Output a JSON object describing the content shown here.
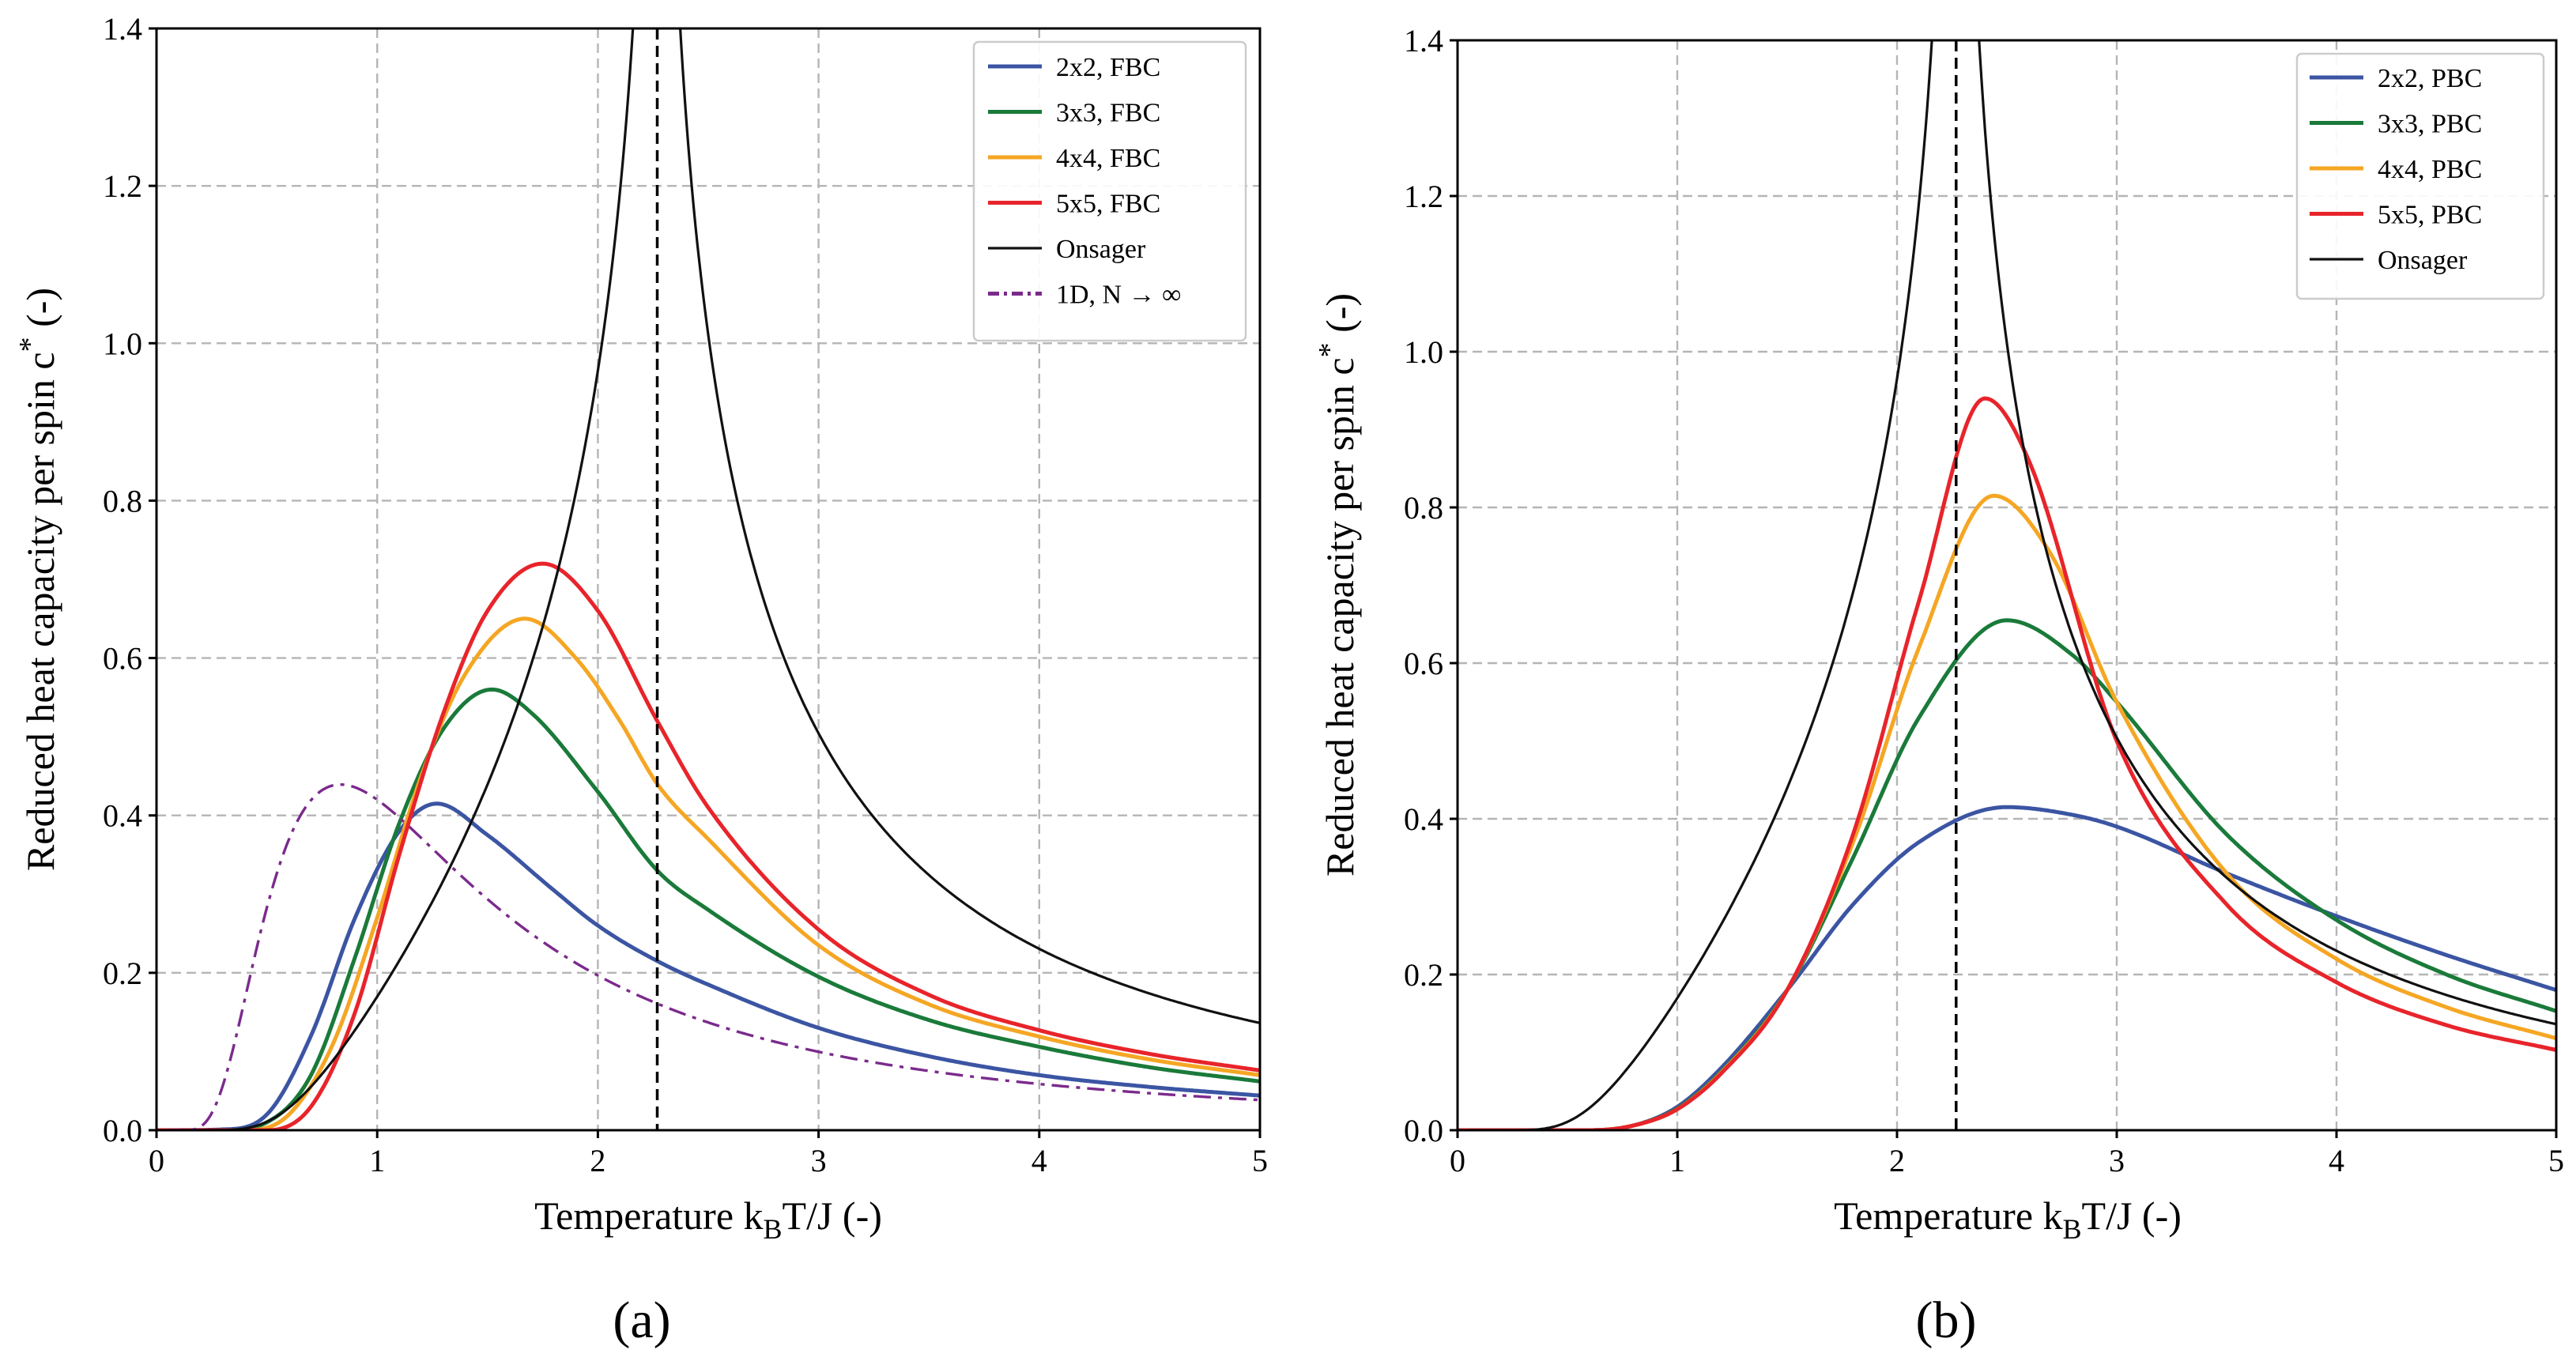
{
  "chart_data": [
    {
      "type": "line",
      "panel": "a",
      "caption": "(a)",
      "xlabel": "Temperature k",
      "xlabel_sub": "B",
      "xlabel_tail": "T/J (-)",
      "ylabel": "Reduced heat capacity per spin c",
      "ylabel_sup": "*",
      "ylabel_tail": "  (-)",
      "xlim": [
        0,
        5
      ],
      "ylim": [
        0,
        1.4
      ],
      "xticks": [
        "0",
        "1",
        "2",
        "3",
        "4",
        "5"
      ],
      "yticks": [
        "0.0",
        "0.2",
        "0.4",
        "0.6",
        "0.8",
        "1.0",
        "1.2",
        "1.4"
      ],
      "grid": true,
      "critical_temperature": 2.269,
      "legend_position": "top-right",
      "series": [
        {
          "name": "2x2, FBC",
          "kind": "finite",
          "n": 2,
          "boundary": "FBC",
          "color": "#3b55a3",
          "style": "solid",
          "x": [
            0.05,
            0.3,
            0.5,
            0.7,
            0.9,
            1.1,
            1.27,
            1.5,
            1.8,
            2.0,
            2.269,
            2.5,
            3.0,
            3.5,
            4.0,
            4.5,
            5.0
          ],
          "y": [
            0.0,
            0.001,
            0.02,
            0.12,
            0.27,
            0.38,
            0.415,
            0.375,
            0.305,
            0.26,
            0.215,
            0.185,
            0.13,
            0.094,
            0.07,
            0.055,
            0.044
          ]
        },
        {
          "name": "3x3, FBC",
          "kind": "finite",
          "n": 3,
          "boundary": "FBC",
          "color": "#1a7a3a",
          "style": "solid",
          "x": [
            0.05,
            0.3,
            0.5,
            0.7,
            0.9,
            1.1,
            1.3,
            1.52,
            1.7,
            2.0,
            2.269,
            2.5,
            3.0,
            3.5,
            4.0,
            4.5,
            5.0
          ],
          "y": [
            0.0,
            0.0,
            0.01,
            0.07,
            0.22,
            0.39,
            0.51,
            0.56,
            0.53,
            0.43,
            0.33,
            0.28,
            0.195,
            0.14,
            0.106,
            0.08,
            0.062
          ]
        },
        {
          "name": "4x4, FBC",
          "kind": "finite",
          "n": 4,
          "boundary": "FBC",
          "color": "#f5a623",
          "style": "solid",
          "x": [
            0.05,
            0.4,
            0.6,
            0.8,
            1.0,
            1.2,
            1.4,
            1.67,
            1.9,
            2.1,
            2.269,
            2.5,
            3.0,
            3.5,
            4.0,
            4.5,
            5.0
          ],
          "y": [
            0.0,
            0.0,
            0.02,
            0.11,
            0.27,
            0.45,
            0.58,
            0.65,
            0.6,
            0.52,
            0.44,
            0.37,
            0.235,
            0.16,
            0.119,
            0.09,
            0.07
          ]
        },
        {
          "name": "5x5, FBC",
          "kind": "finite",
          "n": 5,
          "boundary": "FBC",
          "color": "#e8242b",
          "style": "solid",
          "x": [
            0.05,
            0.5,
            0.7,
            0.9,
            1.1,
            1.3,
            1.5,
            1.75,
            2.0,
            2.269,
            2.5,
            3.0,
            3.5,
            4.0,
            4.5,
            5.0
          ],
          "y": [
            0.0,
            0.0,
            0.03,
            0.15,
            0.35,
            0.53,
            0.66,
            0.72,
            0.66,
            0.52,
            0.41,
            0.255,
            0.172,
            0.127,
            0.097,
            0.076
          ]
        },
        {
          "name": "Onsager",
          "kind": "onsager",
          "color": "#111111",
          "style": "solid"
        },
        {
          "name": "1D, N → ∞",
          "kind": "one_d",
          "color": "#7b2a8c",
          "style": "dashdot"
        }
      ]
    },
    {
      "type": "line",
      "panel": "b",
      "caption": "(b)",
      "xlabel": "Temperature k",
      "xlabel_sub": "B",
      "xlabel_tail": "T/J (-)",
      "ylabel": "Reduced heat capacity per spin c",
      "ylabel_sup": "*",
      "ylabel_tail": "  (-)",
      "xlim": [
        0,
        5
      ],
      "ylim": [
        0,
        1.4
      ],
      "xticks": [
        "0",
        "1",
        "2",
        "3",
        "4",
        "5"
      ],
      "yticks": [
        "0.0",
        "0.2",
        "0.4",
        "0.6",
        "0.8",
        "1.0",
        "1.2",
        "1.4"
      ],
      "grid": true,
      "critical_temperature": 2.269,
      "legend_position": "top-right",
      "series": [
        {
          "name": "2x2, PBC",
          "kind": "finite",
          "n": 2,
          "boundary": "PBC",
          "color": "#3b55a3",
          "style": "solid",
          "x": [
            0.0,
            0.6,
            0.8,
            1.0,
            1.2,
            1.5,
            1.8,
            2.1,
            2.5,
            2.8,
            3.0,
            3.5,
            4.0,
            4.5,
            5.0
          ],
          "y": [
            0.0,
            0.0,
            0.006,
            0.03,
            0.08,
            0.18,
            0.29,
            0.37,
            0.415,
            0.405,
            0.39,
            0.33,
            0.275,
            0.225,
            0.18
          ]
        },
        {
          "name": "3x3, PBC",
          "kind": "finite",
          "n": 3,
          "boundary": "PBC",
          "color": "#1a7a3a",
          "style": "solid",
          "x": [
            0.0,
            0.6,
            0.8,
            1.0,
            1.2,
            1.5,
            1.8,
            2.1,
            2.5,
            2.8,
            3.0,
            3.5,
            4.0,
            4.5,
            5.0
          ],
          "y": [
            0.0,
            0.0,
            0.006,
            0.028,
            0.075,
            0.18,
            0.35,
            0.53,
            0.655,
            0.61,
            0.55,
            0.38,
            0.27,
            0.2,
            0.153
          ]
        },
        {
          "name": "4x4, PBC",
          "kind": "finite",
          "n": 4,
          "boundary": "PBC",
          "color": "#f5a623",
          "style": "solid",
          "x": [
            0.0,
            0.6,
            0.8,
            1.0,
            1.2,
            1.5,
            1.8,
            2.1,
            2.44,
            2.7,
            3.0,
            3.5,
            4.0,
            4.5,
            5.0
          ],
          "y": [
            0.0,
            0.0,
            0.006,
            0.027,
            0.074,
            0.18,
            0.37,
            0.62,
            0.815,
            0.74,
            0.55,
            0.33,
            0.22,
            0.158,
            0.118
          ]
        },
        {
          "name": "5x5, PBC",
          "kind": "finite",
          "n": 5,
          "boundary": "PBC",
          "color": "#e8242b",
          "style": "solid",
          "x": [
            0.0,
            0.6,
            0.8,
            1.0,
            1.2,
            1.5,
            1.8,
            2.1,
            2.4,
            2.6,
            3.0,
            3.5,
            4.0,
            4.5,
            5.0
          ],
          "y": [
            0.0,
            0.0,
            0.006,
            0.027,
            0.073,
            0.18,
            0.38,
            0.68,
            0.94,
            0.86,
            0.5,
            0.29,
            0.19,
            0.135,
            0.103
          ]
        },
        {
          "name": "Onsager",
          "kind": "onsager",
          "color": "#111111",
          "style": "solid"
        }
      ]
    }
  ]
}
